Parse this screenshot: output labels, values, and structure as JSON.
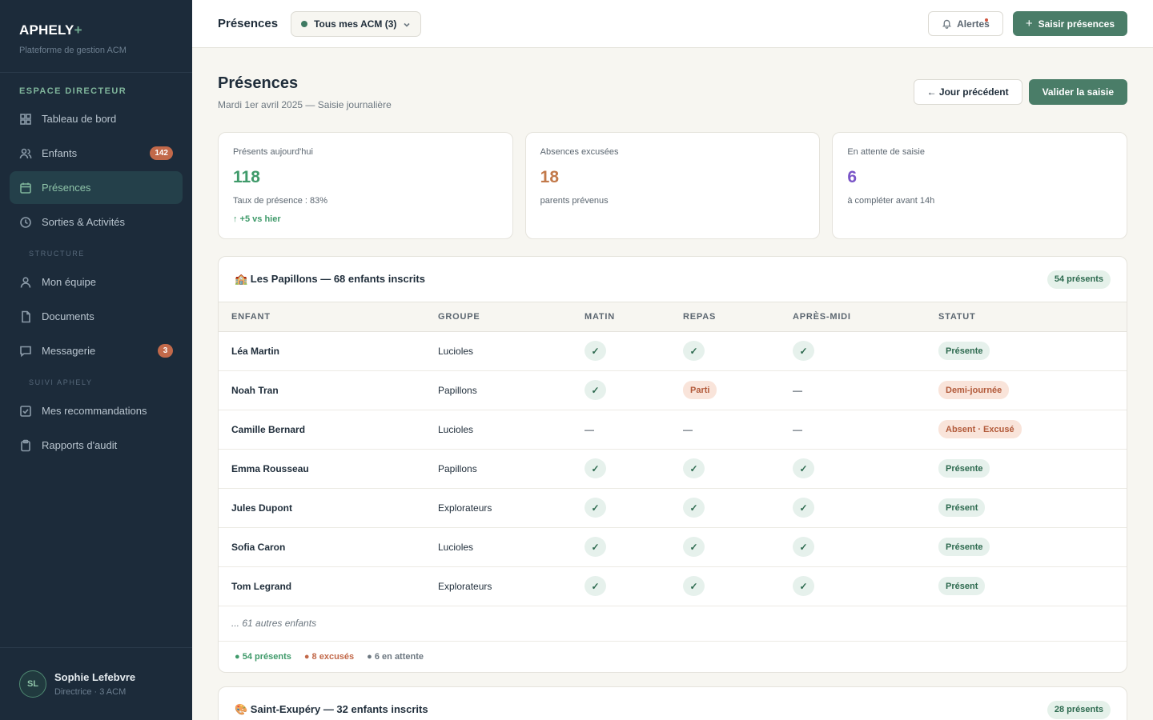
{
  "brand": {
    "name": "APHELY",
    "plus": "+",
    "subtitle": "Plateforme de gestion ACM"
  },
  "sidebar": {
    "section_main": "ESPACE DIRECTEUR",
    "items_main": [
      {
        "label": "Tableau de bord",
        "icon": "grid-icon"
      },
      {
        "label": "Enfants",
        "icon": "users-icon",
        "badge": "142"
      },
      {
        "label": "Présences",
        "icon": "calendar-icon",
        "active": true
      },
      {
        "label": "Sorties & Activités",
        "icon": "clock-icon"
      }
    ],
    "section_structure": "STRUCTURE",
    "items_structure": [
      {
        "label": "Mon équipe",
        "icon": "user-icon"
      },
      {
        "label": "Documents",
        "icon": "document-icon"
      },
      {
        "label": "Messagerie",
        "icon": "message-icon",
        "badge": "3"
      }
    ],
    "section_suivi": "SUIVI APHELY",
    "items_suivi": [
      {
        "label": "Mes recommandations",
        "icon": "checkbox-icon"
      },
      {
        "label": "Rapports d'audit",
        "icon": "clipboard-icon"
      }
    ]
  },
  "user": {
    "initials": "SL",
    "name": "Sophie Lefebvre",
    "role": "Directrice · 3 ACM"
  },
  "topbar": {
    "title": "Présences",
    "acm_select": "Tous mes ACM (3)",
    "alerts_label": "Alertes",
    "primary_label": "Saisir présences"
  },
  "page": {
    "title": "Présences",
    "subtitle": "Mardi 1er avril 2025 — Saisie journalière",
    "prev_day": "← Jour précédent",
    "validate": "Valider la saisie"
  },
  "stats": [
    {
      "label": "Présents aujourd'hui",
      "value": "118",
      "note": "Taux de présence : 83%",
      "trend": "↑ +5 vs hier",
      "color": "#3f9a6a"
    },
    {
      "label": "Absences excusées",
      "value": "18",
      "note": "parents prévenus",
      "color": "#c2794a"
    },
    {
      "label": "En attente de saisie",
      "value": "6",
      "note": "à compléter avant 14h",
      "color": "#7a55c7"
    }
  ],
  "group1": {
    "title": "🏫 Les Papillons — 68 enfants inscrits",
    "present_pill": "54 présents",
    "columns": [
      "ENFANT",
      "GROUPE",
      "MATIN",
      "REPAS",
      "APRÈS-MIDI",
      "STATUT"
    ],
    "rows": [
      {
        "name": "Léa Martin",
        "group": "Lucioles",
        "matin": "check",
        "repas": "check",
        "apm": "check",
        "status": "Présente",
        "status_type": "present"
      },
      {
        "name": "Noah Tran",
        "group": "Papillons",
        "matin": "check",
        "repas": "Parti",
        "apm": "—",
        "status": "Demi-journée",
        "status_type": "half"
      },
      {
        "name": "Camille Bernard",
        "group": "Lucioles",
        "matin": "—",
        "repas": "—",
        "apm": "—",
        "status": "Absent · Excusé",
        "status_type": "abs"
      },
      {
        "name": "Emma Rousseau",
        "group": "Papillons",
        "matin": "check",
        "repas": "check",
        "apm": "check",
        "status": "Présente",
        "status_type": "present"
      },
      {
        "name": "Jules Dupont",
        "group": "Explorateurs",
        "matin": "check",
        "repas": "check",
        "apm": "check",
        "status": "Présent",
        "status_type": "present"
      },
      {
        "name": "Sofia Caron",
        "group": "Lucioles",
        "matin": "check",
        "repas": "check",
        "apm": "check",
        "status": "Présente",
        "status_type": "present"
      },
      {
        "name": "Tom Legrand",
        "group": "Explorateurs",
        "matin": "check",
        "repas": "check",
        "apm": "check",
        "status": "Présent",
        "status_type": "present"
      }
    ],
    "more": "... 61 autres enfants",
    "summary": {
      "present": "● 54 présents",
      "excused": "● 8 excusés",
      "pending": "● 6 en attente"
    }
  },
  "group2": {
    "title": "🎨 Saint-Exupéry — 32 enfants inscrits",
    "present_pill": "28 présents"
  },
  "check_glyph": "✓"
}
